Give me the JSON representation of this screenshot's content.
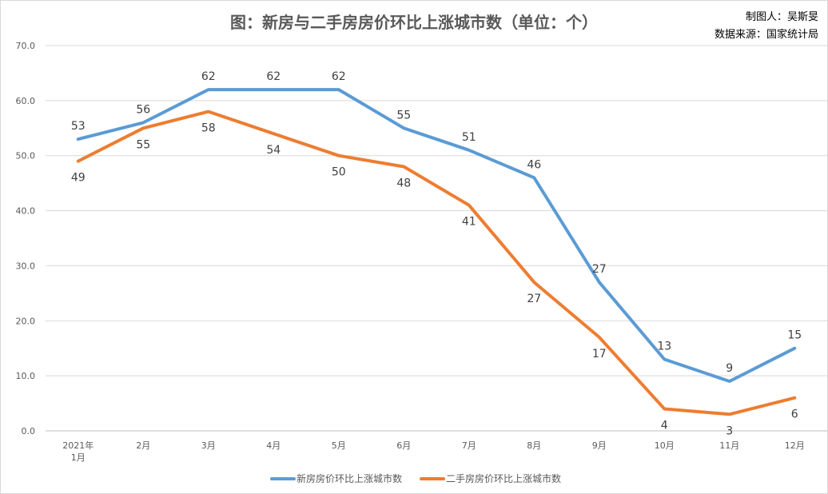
{
  "chart_data": {
    "type": "line",
    "title": "图：新房与二手房房价环比上涨城市数（单位：个）",
    "notes": [
      "制图人：吴斯旻",
      "数据来源：国家统计局"
    ],
    "x_ticks": [
      [
        "2021年",
        "1月"
      ],
      [
        "2月"
      ],
      [
        "3月"
      ],
      [
        "4月"
      ],
      [
        "5月"
      ],
      [
        "6月"
      ],
      [
        "7月"
      ],
      [
        "8月"
      ],
      [
        "9月"
      ],
      [
        "10月"
      ],
      [
        "11月"
      ],
      [
        "12月"
      ]
    ],
    "y_ticks": [
      "0.0",
      "10.0",
      "20.0",
      "30.0",
      "40.0",
      "50.0",
      "60.0",
      "70.0"
    ],
    "ylim": [
      0,
      70
    ],
    "grid": true,
    "legend_position": "bottom",
    "series": [
      {
        "name": "新房房价环比上涨城市数",
        "color": "#5b9bd5",
        "values": [
          53,
          56,
          62,
          62,
          62,
          55,
          51,
          46,
          27,
          13,
          9,
          15
        ]
      },
      {
        "name": "二手房房价环比上涨城市数",
        "color": "#ed7d31",
        "values": [
          49,
          55,
          58,
          54,
          50,
          48,
          41,
          27,
          17,
          4,
          3,
          6
        ]
      }
    ]
  }
}
